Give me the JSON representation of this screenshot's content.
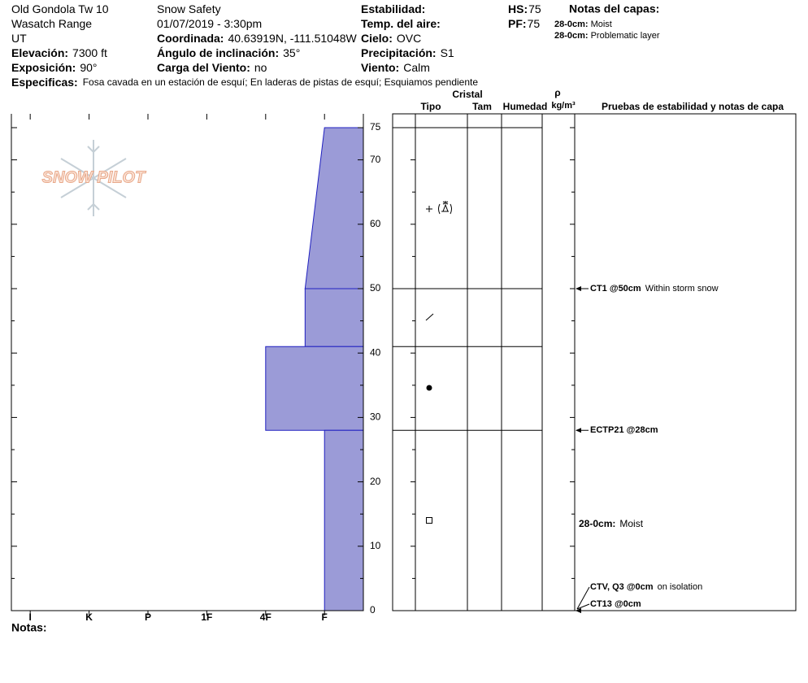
{
  "header": {
    "columns": [
      [
        {
          "value": "Old Gondola Tw 10"
        },
        {
          "value": "Wasatch Range"
        },
        {
          "value": "UT"
        },
        {
          "label": "Elevación:",
          "value": "7300 ft"
        },
        {
          "label": "Exposición:",
          "value": "90°"
        }
      ],
      [
        {
          "value": "Snow Safety"
        },
        {
          "value": "01/07/2019 - 3:30pm"
        },
        {
          "label": "Coordinada:",
          "value": "40.63919N, -111.51048W"
        },
        {
          "label": "Ángulo de inclinación:",
          "value": "35°"
        },
        {
          "label": "Carga del Viento:",
          "value": "no"
        }
      ],
      [
        {
          "label": "Estabilidad:"
        },
        {
          "label": "Temp. del aire:"
        },
        {
          "label": "Cielo:",
          "value": "OVC"
        },
        {
          "label": "Precipitación:",
          "value": "S1"
        },
        {
          "label": "Viento:",
          "value": "Calm"
        }
      ],
      [
        {
          "label": "HS:",
          "value": "75"
        },
        {
          "label": "PF:",
          "value": "75"
        }
      ]
    ],
    "layer_notes": {
      "title": "Notas del capas:",
      "items": [
        {
          "label": "28-0cm:",
          "value": "Moist"
        },
        {
          "label": "28-0cm:",
          "value": "Problematic layer"
        }
      ]
    },
    "specifics": {
      "label": "Especificas:",
      "value": "Fosa cavada en un estación de esquí; En laderas de pistas de esquí; Esquiamos pendiente"
    }
  },
  "logo": "SNOW PILOT",
  "notes_label": "Notas:",
  "profile": {
    "color": "#9b9bd7",
    "hardness_axis": {
      "lim": [
        6.32,
        0.34
      ],
      "ticks": [
        {
          "value": 6,
          "label": "I"
        },
        {
          "value": 5,
          "label": "K"
        },
        {
          "value": 4,
          "label": "P"
        },
        {
          "value": 3,
          "label": "1F"
        },
        {
          "value": 2,
          "label": "4F"
        },
        {
          "value": 1,
          "label": "F"
        }
      ]
    },
    "depth_axis": {
      "lim": [
        0,
        75
      ],
      "ticks": [
        0,
        10,
        20,
        30,
        40,
        50,
        60,
        70,
        75
      ],
      "minor_ticks": [
        5,
        15,
        25,
        35,
        45,
        55,
        65
      ]
    },
    "layers": [
      {
        "top": 75,
        "bottom": 50,
        "hardness_top": 1,
        "hardness_bottom": 1.33
      },
      {
        "top": 50,
        "bottom": 41,
        "hardness_top": 1.33,
        "hardness_bottom": 1.33
      },
      {
        "top": 41,
        "bottom": 28,
        "hardness_top": 2,
        "hardness_bottom": 2
      },
      {
        "top": 28,
        "bottom": 0,
        "hardness_top": 1,
        "hardness_bottom": 1
      }
    ]
  },
  "table": {
    "headers": {
      "crystal": "Cristal",
      "type": "Tipo",
      "size": "Tam",
      "moisture": "Humedad",
      "density": "ρ",
      "density_unit": "kg/m³",
      "tests": "Pruebas de estabilidad y notas de capa"
    },
    "tests": [
      {
        "depth": 50,
        "label": "CT1 @50cm",
        "note": "Within storm snow"
      },
      {
        "depth": 28,
        "label": "ECTP21 @28cm"
      },
      {
        "depth": 0,
        "label": "CTV, Q3 @0cm",
        "note": "on isolation"
      },
      {
        "depth": 0,
        "label": "CT13 @0cm"
      }
    ],
    "notes": [
      {
        "label": "28-0cm:",
        "value": "Moist"
      }
    ]
  }
}
